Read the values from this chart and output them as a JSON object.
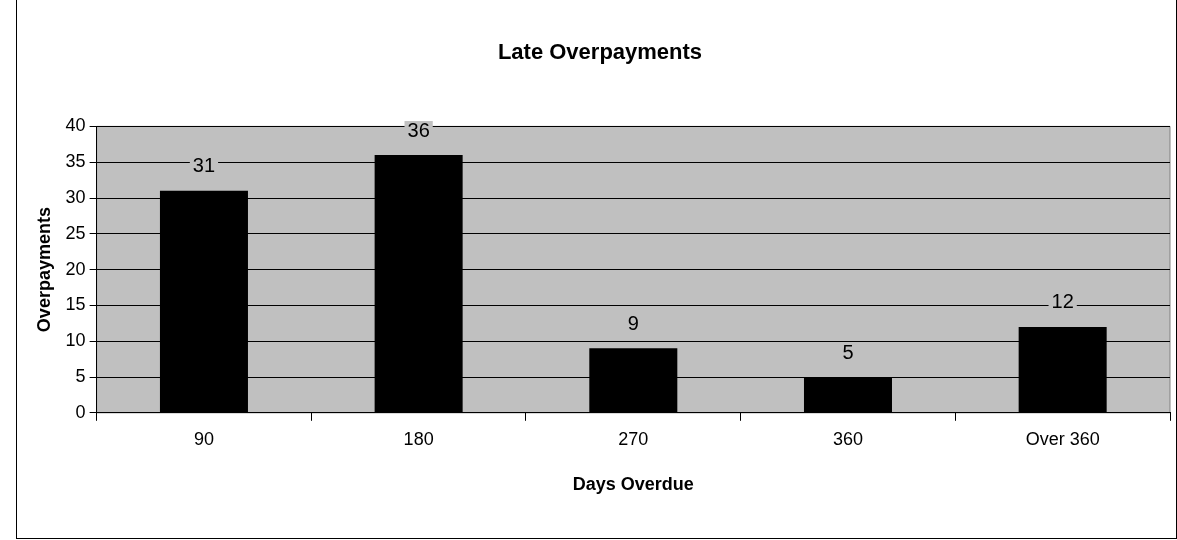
{
  "chart_data": {
    "type": "bar",
    "title": "Late Overpayments",
    "xlabel": "Days Overdue",
    "ylabel": "Overpayments",
    "categories": [
      "90",
      "180",
      "270",
      "360",
      "Over 360"
    ],
    "values": [
      31,
      36,
      9,
      5,
      12
    ],
    "color": "#000000",
    "ylim": [
      0,
      40
    ],
    "yticks": [
      0,
      5,
      10,
      15,
      20,
      25,
      30,
      35,
      40
    ],
    "grid": "y",
    "legend": false,
    "data_labels": true
  }
}
